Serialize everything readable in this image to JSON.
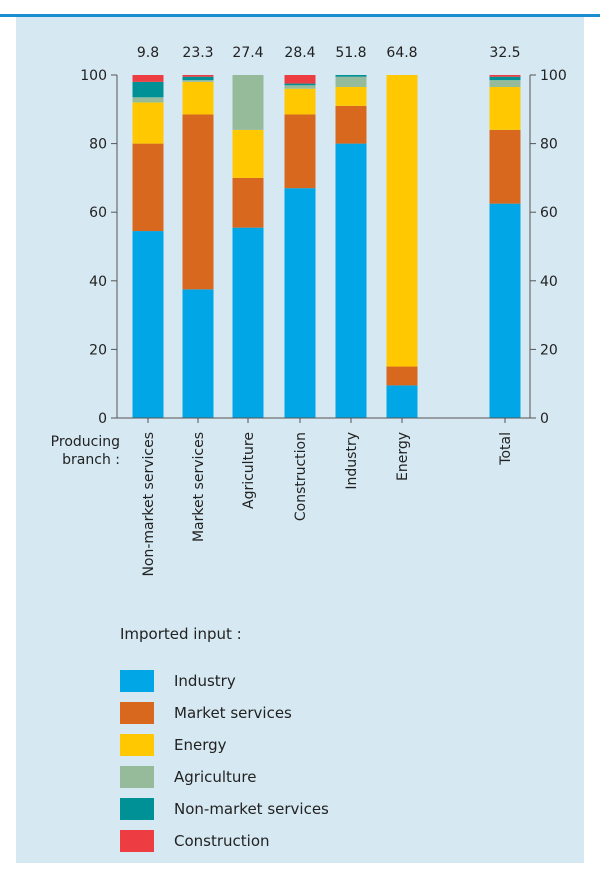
{
  "chart_data": {
    "type": "bar",
    "stacked": true,
    "categories": [
      "Non-market services",
      "Market services",
      "Agriculture",
      "Construction",
      "Industry",
      "Energy",
      "Total"
    ],
    "top_values": [
      "9.8",
      "23.3",
      "27.4",
      "28.4",
      "51.8",
      "64.8",
      "32.5"
    ],
    "xlabel": "Producing branch :",
    "ylim": [
      0,
      100
    ],
    "yticks": [
      "0",
      "20",
      "40",
      "60",
      "80",
      "100"
    ],
    "legend_title": "Imported input :",
    "legend_position": "bottom",
    "grid": false,
    "series": [
      {
        "name": "Industry",
        "color": "#00a6e6",
        "values": [
          54.5,
          37.5,
          55.5,
          67,
          80,
          9.5,
          62.5
        ]
      },
      {
        "name": "Market services",
        "color": "#d9681f",
        "values": [
          25.5,
          51,
          14.5,
          21.5,
          11,
          5.5,
          21.5
        ]
      },
      {
        "name": "Energy",
        "color": "#ffc800",
        "values": [
          12,
          9.5,
          14,
          7.5,
          5.5,
          85,
          12.5
        ]
      },
      {
        "name": "Agriculture",
        "color": "#96bb9b",
        "values": [
          1.5,
          0.5,
          16,
          1,
          3,
          0,
          2
        ]
      },
      {
        "name": "Non-market services",
        "color": "#009196",
        "values": [
          4.5,
          1,
          0,
          0.5,
          0.5,
          0,
          1
        ]
      },
      {
        "name": "Construction",
        "color": "#ee3d42",
        "values": [
          2,
          0.5,
          0,
          2.5,
          0,
          0,
          0.5
        ]
      }
    ]
  }
}
